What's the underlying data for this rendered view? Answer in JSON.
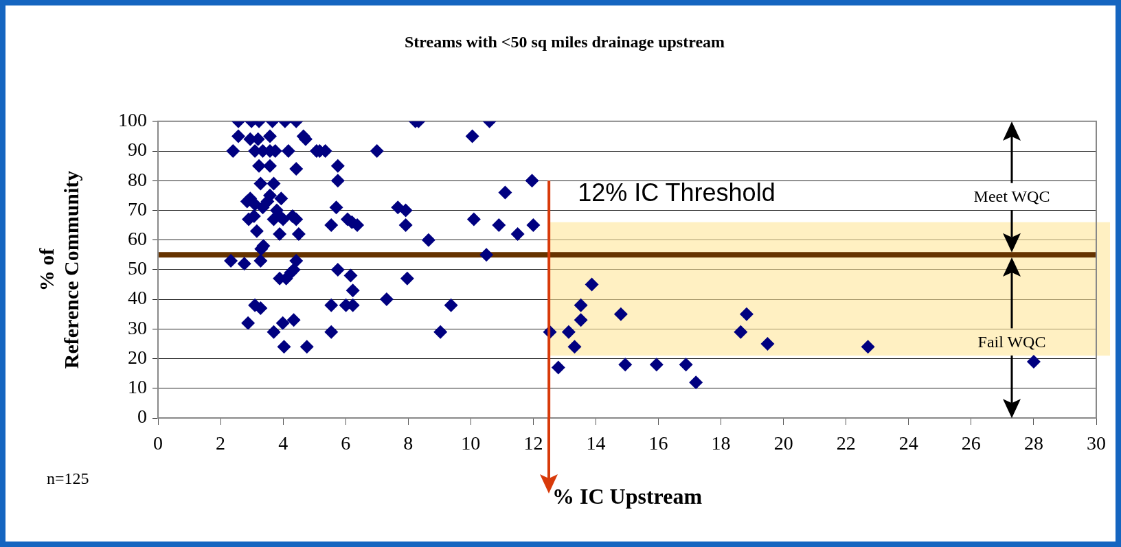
{
  "chart_data": {
    "type": "scatter",
    "title": "Streams with <50 sq miles drainage upstream",
    "xlabel": "% IC Upstream",
    "ylabel": "% of Reference Community",
    "xlim": [
      0,
      30
    ],
    "xticks": [
      0,
      2,
      4,
      6,
      8,
      10,
      12,
      14,
      16,
      18,
      20,
      22,
      24,
      26,
      28,
      30
    ],
    "ylim": [
      0,
      100
    ],
    "yticks": [
      0,
      10,
      20,
      30,
      40,
      50,
      60,
      70,
      80,
      90,
      100
    ],
    "grid": "y",
    "marker": "diamond",
    "series": [
      {
        "color": "#000080",
        "x": [
          2.57,
          2.99,
          3.23,
          3.66,
          4.06,
          4.42,
          8.23,
          8.33,
          10.6,
          2.57,
          2.95,
          3.58,
          4.65,
          4.72,
          10.05,
          3.2,
          2.4,
          3.1,
          3.35,
          3.58,
          3.75,
          4.17,
          5.07,
          5.17,
          5.35,
          7.0,
          3.23,
          3.58,
          4.42,
          5.75,
          3.28,
          5.75,
          11.96,
          3.7,
          11.1,
          2.95,
          3.94,
          3.58,
          2.85,
          3.1,
          3.35,
          3.5,
          5.7,
          7.67,
          7.92,
          3.8,
          2.9,
          3.07,
          3.7,
          3.89,
          4.42,
          4.3,
          10.1,
          6.06,
          4.0,
          6.2,
          5.54,
          6.37,
          7.92,
          10.9,
          12.0,
          3.16,
          3.89,
          4.5,
          11.5,
          8.65,
          3.37,
          3.3,
          10.5,
          2.33,
          2.76,
          3.28,
          4.42,
          5.75,
          4.34,
          4.25,
          6.16,
          3.89,
          4.1,
          7.97,
          6.23,
          7.31,
          3.1,
          5.54,
          6.01,
          6.23,
          9.37,
          3.28,
          4.34,
          2.88,
          3.99,
          3.7,
          5.54,
          9.03,
          4.03,
          4.76,
          12.53,
          13.13,
          13.32,
          12.8,
          13.52,
          13.52,
          13.87,
          14.8,
          14.94,
          15.94,
          16.88,
          17.2,
          18.82,
          18.63,
          19.49,
          22.7,
          28.0
        ],
        "values": [
          100,
          100,
          100,
          100,
          100,
          100,
          100,
          100,
          100,
          95,
          94,
          95,
          95,
          94,
          95,
          94,
          90,
          90,
          90,
          90,
          90,
          90,
          90,
          90,
          90,
          90,
          85,
          85,
          84,
          85,
          79,
          80,
          80,
          79,
          76,
          74,
          74,
          75,
          73,
          72,
          71,
          73,
          71,
          71,
          70,
          70,
          67,
          68,
          67,
          68,
          67,
          68,
          67,
          67,
          67,
          66,
          65,
          65,
          65,
          65,
          65,
          63,
          62,
          62,
          62,
          60,
          58,
          57,
          55,
          53,
          52,
          53,
          53,
          50,
          50,
          49,
          48,
          47,
          47,
          47,
          43,
          40,
          38,
          38,
          38,
          38,
          38,
          37,
          33,
          32,
          32,
          29,
          29,
          29,
          24,
          24,
          29,
          29,
          24,
          17,
          33,
          38,
          45,
          35,
          18,
          18,
          18,
          12,
          35,
          29,
          25,
          24,
          19
        ]
      }
    ],
    "ref_lines": [
      {
        "axis": "y",
        "value": 55,
        "color": "#663300"
      },
      {
        "axis": "x",
        "value": 12.5,
        "label": "12% IC Threshold",
        "color": "#d83a0a"
      }
    ],
    "bands": [
      {
        "axis": "y",
        "from": 21,
        "to": 66,
        "color": "#ffe699"
      }
    ],
    "annotations": [
      "Meet WQC",
      "Fail WQC",
      "n=125"
    ]
  }
}
